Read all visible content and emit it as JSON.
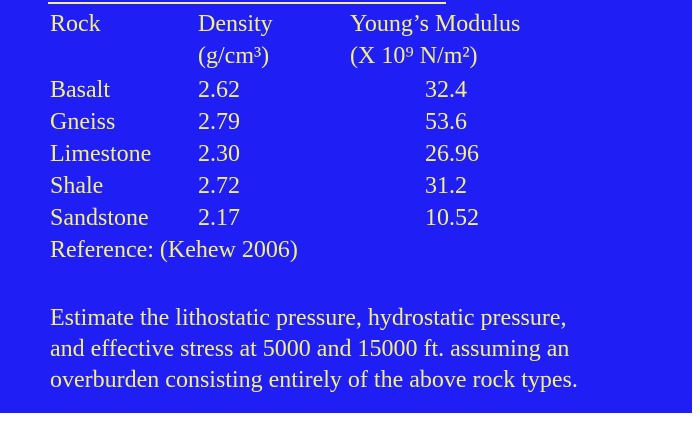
{
  "table": {
    "header": [
      "Rock",
      "Density",
      "Young’s Modulus"
    ],
    "units": [
      "(g/cm³)",
      "(X 10⁹ N/m²)"
    ],
    "rows": [
      [
        "Basalt",
        "2.62",
        "32.4"
      ],
      [
        "Gneiss",
        "2.79",
        "53.6"
      ],
      [
        "Limestone",
        "2.30",
        "26.96"
      ],
      [
        "Shale",
        "2.72",
        "31.2"
      ],
      [
        "Sandstone",
        "2.17",
        "10.52"
      ]
    ],
    "reference": "Reference: (Kehew 2006)"
  },
  "question": {
    "lines": [
      "Estimate the lithostatic pressure, hydrostatic pressure,",
      "and effective stress at 5000 and 15000 ft. assuming an",
      "overburden consisting entirely of the above rock types."
    ]
  }
}
